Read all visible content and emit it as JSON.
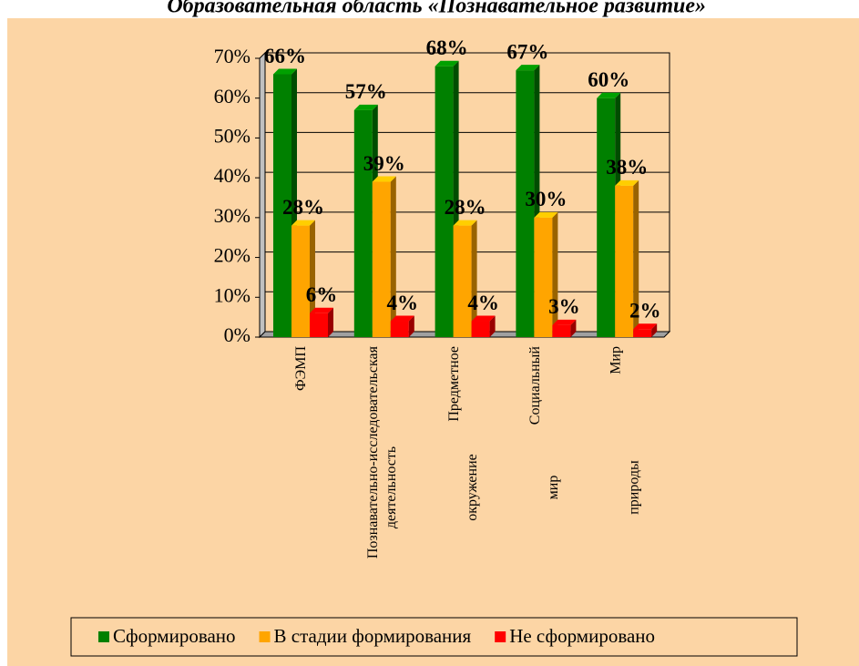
{
  "chart_data": {
    "type": "bar3d",
    "title": "Образовательная область «Познавательное развитие»",
    "categories": [
      "ФЭМП",
      "Познавательно-исследовательская деятельность",
      "Предметное окружение",
      "Социальный мир",
      "Мир природы"
    ],
    "series": [
      {
        "name": "Сформировано",
        "color": "#008000",
        "values": [
          66,
          57,
          68,
          67,
          60
        ],
        "value_labels": [
          "66%",
          "57%",
          "68%",
          "67%",
          "60%"
        ]
      },
      {
        "name": "В стадии формирования",
        "color": "#ffa500",
        "values": [
          28,
          39,
          28,
          30,
          38
        ],
        "value_labels": [
          "28%",
          "39%",
          "28%",
          "30%",
          "38%"
        ]
      },
      {
        "name": "Не сформировано",
        "color": "#ff0000",
        "values": [
          6,
          4,
          4,
          3,
          2
        ],
        "value_labels": [
          "6%",
          "4%",
          "4%",
          "3%",
          "2%"
        ]
      }
    ],
    "ylim": [
      0,
      70
    ],
    "yticks": [
      {
        "value": 0,
        "label": "0%"
      },
      {
        "value": 10,
        "label": "10%"
      },
      {
        "value": 20,
        "label": "20%"
      },
      {
        "value": 30,
        "label": "30%"
      },
      {
        "value": 40,
        "label": "40%"
      },
      {
        "value": 50,
        "label": "50%"
      },
      {
        "value": 60,
        "label": "60%"
      },
      {
        "value": 70,
        "label": "70%"
      }
    ],
    "grid": true,
    "legend": "bottom"
  }
}
